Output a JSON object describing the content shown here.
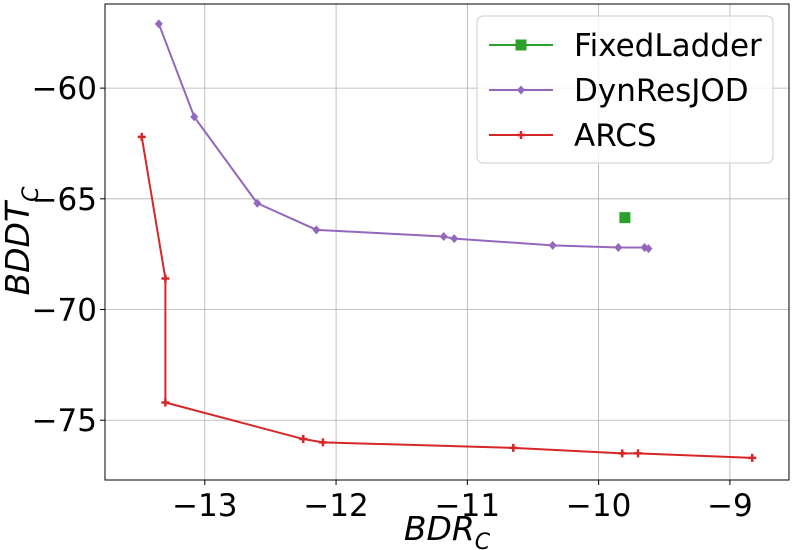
{
  "chart_data": {
    "type": "line",
    "xlabel": {
      "main": "BDR",
      "sub": "C"
    },
    "ylabel": {
      "main": "BDDT",
      "sub": "C"
    },
    "xlim": [
      -13.76,
      -8.55
    ],
    "ylim": [
      -77.7,
      -56.2
    ],
    "xticks": [
      -13,
      -12,
      -11,
      -10,
      -9
    ],
    "xtick_labels": [
      "−13",
      "−12",
      "−11",
      "−10",
      "−9"
    ],
    "yticks": [
      -60,
      -65,
      -70,
      -75
    ],
    "ytick_labels": [
      "−60",
      "−65",
      "−70",
      "−75"
    ],
    "grid": true,
    "legend_position": "top-right",
    "series": [
      {
        "name": "FixedLadder",
        "color": "#2ca02c",
        "marker": "square",
        "points": [
          [
            -9.8,
            -65.85
          ]
        ]
      },
      {
        "name": "DynResJOD",
        "color": "#9467bd",
        "marker": "diamond",
        "points": [
          [
            -13.35,
            -57.1
          ],
          [
            -13.08,
            -61.3
          ],
          [
            -12.6,
            -65.2
          ],
          [
            -12.15,
            -66.4
          ],
          [
            -11.18,
            -66.7
          ],
          [
            -11.1,
            -66.8
          ],
          [
            -10.35,
            -67.1
          ],
          [
            -9.85,
            -67.2
          ],
          [
            -9.65,
            -67.2
          ],
          [
            -9.62,
            -67.25
          ]
        ]
      },
      {
        "name": "ARCS",
        "color": "#d62728",
        "marker": "plus",
        "points": [
          [
            -13.48,
            -62.2
          ],
          [
            -13.3,
            -68.6
          ],
          [
            -13.3,
            -74.2
          ],
          [
            -12.25,
            -75.85
          ],
          [
            -12.1,
            -76.0
          ],
          [
            -10.65,
            -76.25
          ],
          [
            -9.82,
            -76.5
          ],
          [
            -9.7,
            -76.5
          ],
          [
            -8.83,
            -76.7
          ]
        ]
      }
    ]
  }
}
